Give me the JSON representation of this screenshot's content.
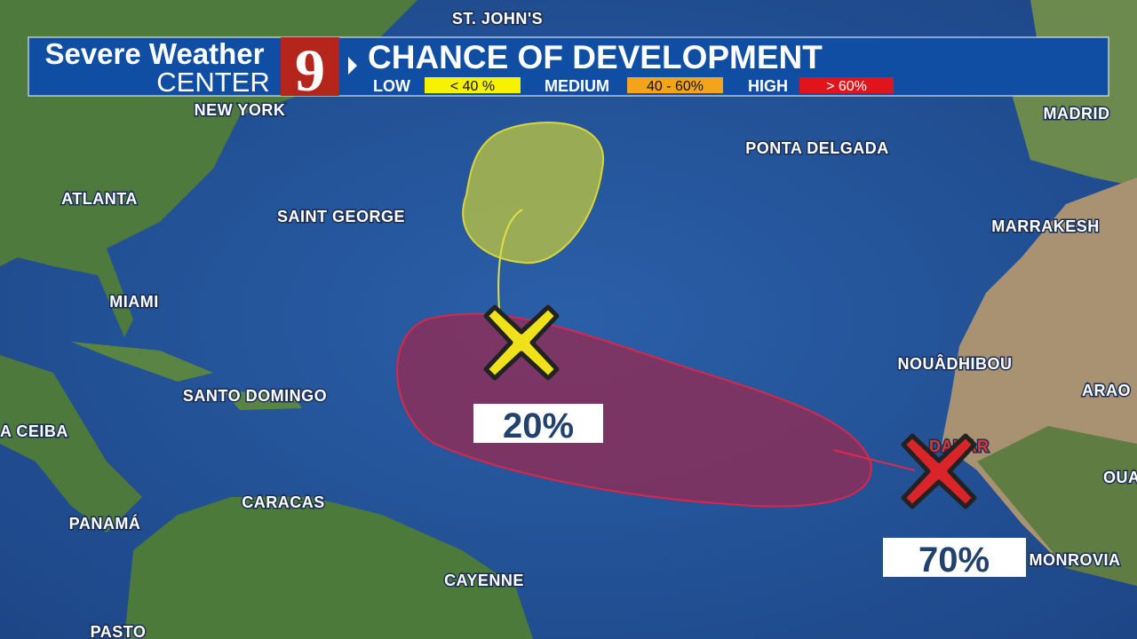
{
  "header": {
    "brand_top": "Severe Weather",
    "brand_bottom": "CENTER",
    "channel": "9",
    "title": "CHANCE OF DEVELOPMENT",
    "legend": [
      {
        "name": "LOW",
        "range": "< 40 %"
      },
      {
        "name": "MEDIUM",
        "range": "40 - 60%"
      },
      {
        "name": "HIGH",
        "range": "> 60%"
      }
    ]
  },
  "cities": [
    "ST. JOHN'S",
    "NEW YORK",
    "MADRID",
    "PONTA DELGADA",
    "ATLANTA",
    "SAINT GEORGE",
    "MARRAKESH",
    "MIAMI",
    "NOUÂDHIBOU",
    "ARAO",
    "SANTO DOMINGO",
    "A CEIBA",
    "DAKAR",
    "OUA",
    "CARACAS",
    "PANAMÁ",
    "MONROVIA",
    "CAYENNE",
    "PASTO"
  ],
  "systems": [
    {
      "chance": "20%"
    },
    {
      "chance": "70%"
    }
  ]
}
